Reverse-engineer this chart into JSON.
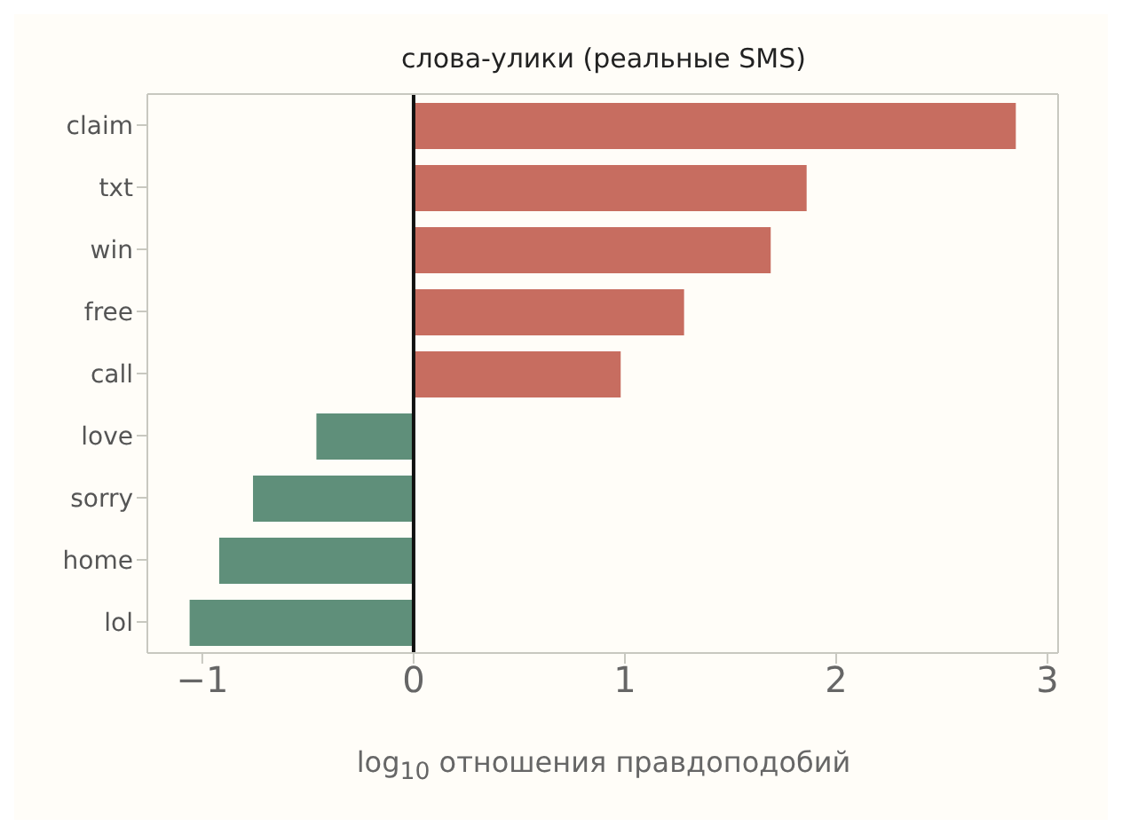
{
  "chart_data": {
    "type": "bar",
    "orientation": "horizontal",
    "title": "слова-улики (реальные SMS)",
    "xlabel": "log$_{10}$ отношения правдоподобий",
    "categories": [
      "claim",
      "txt",
      "win",
      "free",
      "call",
      "love",
      "sorry",
      "home",
      "lol"
    ],
    "values": [
      2.85,
      1.86,
      1.69,
      1.28,
      0.98,
      -0.46,
      -0.76,
      -0.92,
      -1.06
    ],
    "colors": [
      "#c76d60",
      "#c76d60",
      "#c76d60",
      "#c76d60",
      "#c76d60",
      "#5f8f7a",
      "#5f8f7a",
      "#5f8f7a",
      "#5f8f7a"
    ],
    "xlim": [
      -1.26,
      3.05
    ],
    "xticks": [
      -1,
      0,
      1,
      2,
      3
    ],
    "ref_lines": [
      {
        "axis": "x",
        "value": 0,
        "color": "#111111",
        "line_style": "solid"
      }
    ],
    "grid": false,
    "legend": false
  }
}
